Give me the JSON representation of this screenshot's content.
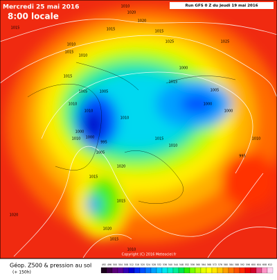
{
  "header": {
    "date": "Mercredi 25 mai 2016",
    "time": "8:00 locale",
    "run": "Run GFS 0 Z du Jeudi 19 mai 2016"
  },
  "footer": {
    "title": "Géop. Z500 & pression au sol",
    "lead": "(+ 150h)",
    "copyright": "Copyright (C) 2016 Meteociel.fr"
  },
  "colorbar": {
    "ticks": [
      492,
      496,
      500,
      504,
      508,
      512,
      516,
      520,
      524,
      528,
      532,
      536,
      540,
      544,
      548,
      552,
      556,
      560,
      564,
      568,
      572,
      576,
      580,
      584,
      588,
      592,
      596,
      600,
      604,
      608,
      612
    ],
    "colors": [
      "#1a001a",
      "#3a0046",
      "#5a0078",
      "#5a0096",
      "#3200b4",
      "#0000d2",
      "#0028f0",
      "#0050ff",
      "#0078ff",
      "#00a0ff",
      "#00c8ff",
      "#00e6f0",
      "#00f0c8",
      "#00f096",
      "#00e650",
      "#28f000",
      "#78ff00",
      "#b4ff00",
      "#e6ff00",
      "#ffff00",
      "#ffe600",
      "#ffc800",
      "#ffa000",
      "#ff7800",
      "#ff5000",
      "#ff2800",
      "#f00000",
      "#d20028",
      "#e6508c",
      "#ff96c8",
      "#ffd2f0"
    ]
  },
  "isobar_labels": [
    1010,
    1020,
    1015,
    1010,
    1015,
    1010,
    1020,
    1015,
    1015,
    1010,
    1005,
    1005,
    1010,
    1010,
    1000,
    1000,
    995,
    1005,
    1020,
    1010,
    1015,
    1000,
    1025,
    1015,
    1025,
    1000,
    1005,
    1000,
    1015,
    1010,
    1015,
    1015,
    1020,
    1015,
    1010,
    995,
    1010,
    1020
  ]
}
